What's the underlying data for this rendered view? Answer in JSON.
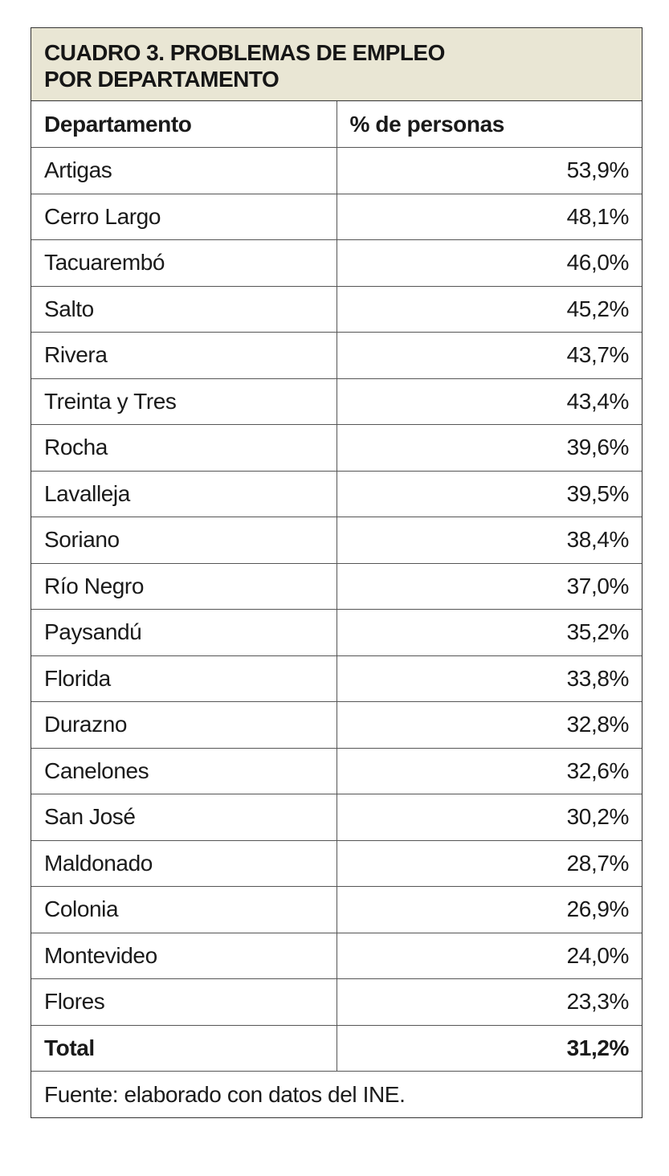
{
  "title": {
    "line1": "CUADRO 3. PROBLEMAS DE EMPLEO",
    "line2": "POR DEPARTAMENTO"
  },
  "columns": {
    "department": "Departamento",
    "percent": "% de personas"
  },
  "rows": [
    {
      "department": "Artigas",
      "percent": "53,9%"
    },
    {
      "department": "Cerro Largo",
      "percent": "48,1%"
    },
    {
      "department": "Tacuarembó",
      "percent": "46,0%"
    },
    {
      "department": "Salto",
      "percent": "45,2%"
    },
    {
      "department": "Rivera",
      "percent": "43,7%"
    },
    {
      "department": "Treinta y Tres",
      "percent": "43,4%"
    },
    {
      "department": "Rocha",
      "percent": "39,6%"
    },
    {
      "department": "Lavalleja",
      "percent": "39,5%"
    },
    {
      "department": "Soriano",
      "percent": "38,4%"
    },
    {
      "department": "Río Negro",
      "percent": "37,0%"
    },
    {
      "department": "Paysandú",
      "percent": "35,2%"
    },
    {
      "department": "Florida",
      "percent": "33,8%"
    },
    {
      "department": "Durazno",
      "percent": "32,8%"
    },
    {
      "department": "Canelones",
      "percent": "32,6%"
    },
    {
      "department": "San José",
      "percent": "30,2%"
    },
    {
      "department": "Maldonado",
      "percent": "28,7%"
    },
    {
      "department": "Colonia",
      "percent": "26,9%"
    },
    {
      "department": "Montevideo",
      "percent": "24,0%"
    },
    {
      "department": "Flores",
      "percent": "23,3%"
    }
  ],
  "total": {
    "label": "Total",
    "percent": "31,2%"
  },
  "source": "Fuente: elaborado con datos del INE.",
  "colors": {
    "title_background": "#e9e6d4",
    "border": "#333333"
  }
}
